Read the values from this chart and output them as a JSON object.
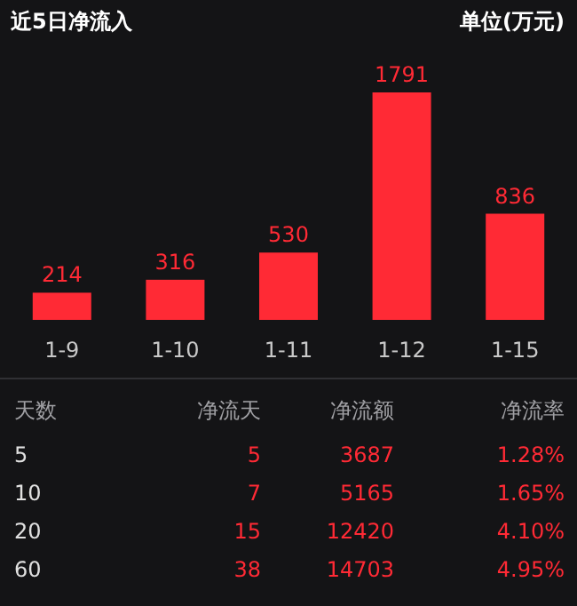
{
  "chart_data": [
    {
      "type": "bar",
      "title": "近5日净流入",
      "subtitle": "单位(万元)",
      "categories": [
        "1-9",
        "1-10",
        "1-11",
        "1-12",
        "1-15"
      ],
      "values": [
        214,
        316,
        530,
        1791,
        836
      ],
      "color": "#ff2a35",
      "data_labels": true
    },
    {
      "type": "other",
      "annotations": [
        "天数",
        "净流天",
        "净流额",
        "净流率",
        "5",
        "5",
        "3687",
        "1.28%",
        "10",
        "7",
        "5165",
        "1.65%",
        "20",
        "15",
        "12420",
        "4.10%",
        "60",
        "38",
        "14703",
        "4.95%"
      ]
    }
  ]
}
